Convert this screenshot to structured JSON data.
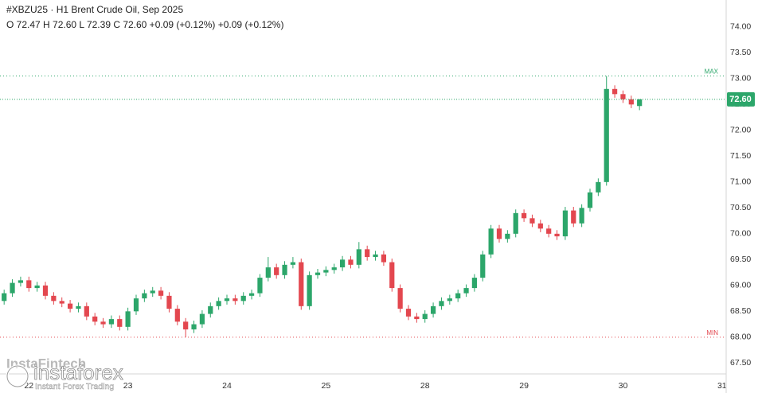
{
  "chart_data": {
    "type": "candlestick",
    "title": "#XBZU25 · H1 Brent Crude Oil, Sep 2025",
    "subtitle": "O 72.47 H 72.60 L 72.39 C 72.60 +0.09 (+0.12%) +0.09 (+0.12%)",
    "categories": [
      null,
      null,
      null,
      "22",
      null,
      null,
      null,
      null,
      null,
      null,
      null,
      null,
      null,
      null,
      null,
      "23",
      null,
      null,
      null,
      null,
      null,
      null,
      null,
      null,
      null,
      null,
      null,
      "24",
      null,
      null,
      null,
      null,
      null,
      null,
      null,
      null,
      null,
      null,
      null,
      "25",
      null,
      null,
      null,
      null,
      null,
      null,
      null,
      null,
      null,
      null,
      null,
      "28",
      null,
      null,
      null,
      null,
      null,
      null,
      null,
      null,
      null,
      null,
      null,
      "29",
      null,
      null,
      null,
      null,
      null,
      null,
      null,
      null,
      null,
      null,
      null,
      "30",
      null,
      null,
      null,
      null,
      null,
      null,
      null,
      null,
      null,
      null,
      null,
      "31"
    ],
    "open": [
      68.7,
      68.85,
      69.05,
      69.1,
      68.95,
      69.0,
      68.8,
      68.7,
      68.65,
      68.55,
      68.6,
      68.4,
      68.3,
      68.25,
      68.35,
      68.2,
      68.5,
      68.75,
      68.85,
      68.9,
      68.8,
      68.55,
      68.3,
      68.15,
      68.25,
      68.45,
      68.6,
      68.7,
      68.75,
      68.7,
      68.8,
      68.85,
      69.15,
      69.35,
      69.2,
      69.4,
      69.45,
      68.6,
      69.2,
      69.25,
      69.3,
      69.35,
      69.5,
      69.4,
      69.7,
      69.55,
      69.6,
      69.45,
      68.95,
      68.55,
      68.4,
      68.35,
      68.45,
      68.6,
      68.7,
      68.75,
      68.85,
      68.95,
      69.15,
      69.6,
      70.1,
      69.9,
      70.0,
      70.4,
      70.3,
      70.2,
      70.1,
      70.0,
      69.95,
      70.45,
      70.2,
      70.5,
      70.8,
      71.0,
      72.8,
      72.7,
      72.6,
      72.47,
      null,
      null,
      null,
      null,
      null,
      null,
      null,
      null,
      null,
      null
    ],
    "high": [
      68.92,
      69.12,
      69.17,
      69.17,
      69.07,
      69.07,
      68.87,
      68.77,
      68.72,
      68.67,
      68.67,
      68.47,
      68.37,
      68.42,
      68.42,
      68.57,
      68.82,
      68.92,
      68.97,
      68.97,
      68.87,
      68.62,
      68.37,
      68.32,
      68.52,
      68.67,
      68.77,
      68.82,
      68.82,
      68.87,
      68.92,
      69.22,
      69.55,
      69.42,
      69.47,
      69.55,
      69.52,
      69.27,
      69.32,
      69.37,
      69.42,
      69.57,
      69.57,
      69.84,
      69.77,
      69.67,
      69.67,
      69.52,
      69.02,
      68.62,
      68.47,
      68.52,
      68.67,
      68.77,
      68.82,
      68.92,
      69.02,
      69.22,
      69.67,
      70.17,
      70.17,
      70.07,
      70.47,
      70.47,
      70.37,
      70.27,
      70.17,
      70.07,
      70.52,
      70.52,
      70.57,
      70.87,
      71.07,
      73.05,
      72.87,
      72.77,
      72.67,
      72.6,
      null,
      null,
      null,
      null,
      null,
      null,
      null,
      null,
      null,
      null
    ],
    "low": [
      68.63,
      68.78,
      68.98,
      68.88,
      68.88,
      68.73,
      68.63,
      68.58,
      68.48,
      68.48,
      68.33,
      68.23,
      68.18,
      68.18,
      68.13,
      68.13,
      68.43,
      68.68,
      68.78,
      68.73,
      68.48,
      68.23,
      68.0,
      68.08,
      68.18,
      68.38,
      68.53,
      68.63,
      68.63,
      68.63,
      68.73,
      68.78,
      69.08,
      69.13,
      69.13,
      69.33,
      68.53,
      68.53,
      69.13,
      69.18,
      69.23,
      69.28,
      69.33,
      69.33,
      69.48,
      69.48,
      69.38,
      68.88,
      68.48,
      68.33,
      68.28,
      68.28,
      68.38,
      68.53,
      68.63,
      68.68,
      68.78,
      68.88,
      69.08,
      69.53,
      69.83,
      69.83,
      69.93,
      70.23,
      70.13,
      70.03,
      69.93,
      69.88,
      69.88,
      70.13,
      70.13,
      70.43,
      70.73,
      70.93,
      72.63,
      72.53,
      72.43,
      72.39,
      null,
      null,
      null,
      null,
      null,
      null,
      null,
      null,
      null,
      null
    ],
    "close": [
      68.85,
      69.05,
      69.1,
      68.95,
      69.0,
      68.8,
      68.7,
      68.65,
      68.55,
      68.6,
      68.4,
      68.3,
      68.25,
      68.35,
      68.2,
      68.5,
      68.75,
      68.85,
      68.9,
      68.8,
      68.55,
      68.3,
      68.15,
      68.25,
      68.45,
      68.6,
      68.7,
      68.75,
      68.7,
      68.8,
      68.85,
      69.15,
      69.35,
      69.2,
      69.4,
      69.45,
      68.6,
      69.2,
      69.25,
      69.3,
      69.35,
      69.5,
      69.4,
      69.7,
      69.55,
      69.6,
      69.45,
      68.95,
      68.55,
      68.4,
      68.35,
      68.45,
      68.6,
      68.7,
      68.75,
      68.85,
      68.95,
      69.15,
      69.6,
      70.1,
      69.9,
      70.0,
      70.4,
      70.3,
      70.2,
      70.1,
      70.0,
      69.95,
      70.45,
      70.2,
      70.5,
      70.8,
      71.0,
      72.8,
      72.7,
      72.6,
      72.5,
      72.6,
      null,
      null,
      null,
      null,
      null,
      null,
      null,
      null,
      null,
      null
    ],
    "up_color": "#2ca66a",
    "down_color": "#e3474f",
    "ylim": [
      67.29,
      74.52
    ],
    "yticks": [
      {
        "value": 67.5,
        "label": "67.50"
      },
      {
        "value": 68,
        "label": "68.00"
      },
      {
        "value": 68.5,
        "label": "68.50"
      },
      {
        "value": 69,
        "label": "69.00"
      },
      {
        "value": 69.5,
        "label": "69.50"
      },
      {
        "value": 70,
        "label": "70.00"
      },
      {
        "value": 70.5,
        "label": "70.50"
      },
      {
        "value": 71,
        "label": "71.00"
      },
      {
        "value": 71.5,
        "label": "71.50"
      },
      {
        "value": 72,
        "label": "72.00"
      },
      {
        "value": 72.5,
        "label": "72.50"
      },
      {
        "value": 73,
        "label": "73.00"
      },
      {
        "value": 73.5,
        "label": "73.50"
      },
      {
        "value": 74,
        "label": "74.00"
      }
    ],
    "grid": false,
    "max_line": {
      "value": 73.05,
      "label": "MAX"
    },
    "min_line": {
      "value": 68.0,
      "label": "MIN"
    },
    "last_price": {
      "value": 72.6,
      "label": "72.60"
    },
    "watermark": {
      "company": "InstaFintech",
      "brand": "instaforex",
      "tagline": "Instant Forex Trading"
    }
  }
}
